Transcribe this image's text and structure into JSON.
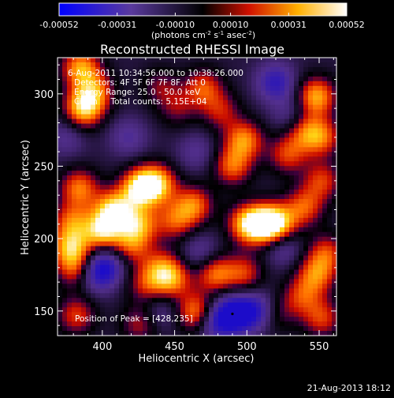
{
  "chart_data": {
    "type": "heatmap",
    "title": "Reconstructed RHESSI Image",
    "xlabel": "Heliocentric X (arcsec)",
    "ylabel": "Heliocentric Y (arcsec)",
    "xlim": [
      369,
      562
    ],
    "ylim": [
      133,
      325
    ],
    "xticks": [
      "400",
      "450",
      "500",
      "550"
    ],
    "yticks": [
      "150",
      "200",
      "250",
      "300"
    ],
    "colorbar": {
      "range": [
        -0.00052,
        0.00052
      ],
      "ticks": [
        "-0.00052",
        "-0.00031",
        "-0.00010",
        "0.00010",
        "0.00031",
        "0.00052"
      ],
      "label": "(photons cm",
      "label_exp1": "-2",
      "label_mid": " s",
      "label_exp2": "-1",
      "label_end": " asec",
      "label_exp3": "-2",
      "label_close": ")"
    },
    "annotations": {
      "line1": "6-Aug-2011 10:34:56.000 to 10:38:26.000",
      "line2": "Detectors: 4F 5F 6F 7F 8F, Att 0",
      "line3": "Energy Range: 25.0 - 50.0 keV",
      "line4": "Clean     Total counts: 5.15E+04",
      "peak": "Position of Peak = [428,235]"
    },
    "peak_position": [
      428,
      235
    ],
    "footer_date": "21-Aug-2013 18:12",
    "sources": [
      {
        "x": 385,
        "y": 318,
        "v": 0.8
      },
      {
        "x": 395,
        "y": 302,
        "v": 0.6
      },
      {
        "x": 387,
        "y": 290,
        "v": 0.95
      },
      {
        "x": 384,
        "y": 235,
        "v": 0.7
      },
      {
        "x": 379,
        "y": 212,
        "v": 0.6
      },
      {
        "x": 378,
        "y": 194,
        "v": 0.8
      },
      {
        "x": 382,
        "y": 179,
        "v": 0.6
      },
      {
        "x": 382,
        "y": 147,
        "v": 0.55
      },
      {
        "x": 400,
        "y": 205,
        "v": 0.9
      },
      {
        "x": 408,
        "y": 220,
        "v": 0.95
      },
      {
        "x": 426,
        "y": 235,
        "v": 1.0
      },
      {
        "x": 438,
        "y": 238,
        "v": 0.85
      },
      {
        "x": 425,
        "y": 210,
        "v": 0.75
      },
      {
        "x": 420,
        "y": 195,
        "v": 0.55
      },
      {
        "x": 430,
        "y": 168,
        "v": 0.45
      },
      {
        "x": 440,
        "y": 180,
        "v": 0.5
      },
      {
        "x": 450,
        "y": 212,
        "v": 0.55
      },
      {
        "x": 463,
        "y": 223,
        "v": 0.7
      },
      {
        "x": 448,
        "y": 172,
        "v": 0.7
      },
      {
        "x": 465,
        "y": 149,
        "v": 0.8
      },
      {
        "x": 478,
        "y": 176,
        "v": 0.7
      },
      {
        "x": 498,
        "y": 176,
        "v": 0.55
      },
      {
        "x": 500,
        "y": 210,
        "v": 0.8
      },
      {
        "x": 512,
        "y": 210,
        "v": 0.9
      },
      {
        "x": 522,
        "y": 210,
        "v": 0.8
      },
      {
        "x": 490,
        "y": 250,
        "v": 0.65
      },
      {
        "x": 498,
        "y": 268,
        "v": 0.75
      },
      {
        "x": 482,
        "y": 288,
        "v": 0.45
      },
      {
        "x": 470,
        "y": 304,
        "v": 0.6
      },
      {
        "x": 528,
        "y": 258,
        "v": 0.55
      },
      {
        "x": 540,
        "y": 274,
        "v": 0.55
      },
      {
        "x": 548,
        "y": 298,
        "v": 0.85
      },
      {
        "x": 552,
        "y": 270,
        "v": 0.6
      },
      {
        "x": 552,
        "y": 240,
        "v": 0.55
      },
      {
        "x": 540,
        "y": 222,
        "v": 0.6
      },
      {
        "x": 555,
        "y": 190,
        "v": 0.55
      },
      {
        "x": 548,
        "y": 175,
        "v": 0.65
      },
      {
        "x": 538,
        "y": 160,
        "v": 0.5
      },
      {
        "x": 552,
        "y": 145,
        "v": 0.55
      },
      {
        "x": 520,
        "y": 148,
        "v": 0.35
      },
      {
        "x": 426,
        "y": 141,
        "v": 0.45
      },
      {
        "x": 452,
        "y": 290,
        "v": 0.35
      },
      {
        "x": 440,
        "y": 305,
        "v": 0.35
      },
      {
        "x": 403,
        "y": 182,
        "v": -0.5
      },
      {
        "x": 396,
        "y": 176,
        "v": -0.55
      },
      {
        "x": 492,
        "y": 148,
        "v": -0.85
      },
      {
        "x": 478,
        "y": 143,
        "v": -0.6
      },
      {
        "x": 508,
        "y": 150,
        "v": -0.6
      },
      {
        "x": 520,
        "y": 308,
        "v": -0.6
      },
      {
        "x": 525,
        "y": 195,
        "v": -0.4
      },
      {
        "x": 418,
        "y": 270,
        "v": -0.35
      },
      {
        "x": 468,
        "y": 190,
        "v": -0.35
      },
      {
        "x": 465,
        "y": 260,
        "v": -0.3
      },
      {
        "x": 375,
        "y": 270,
        "v": -0.3
      },
      {
        "x": 440,
        "y": 150,
        "v": -0.3
      },
      {
        "x": 530,
        "y": 285,
        "v": -0.3
      }
    ]
  }
}
